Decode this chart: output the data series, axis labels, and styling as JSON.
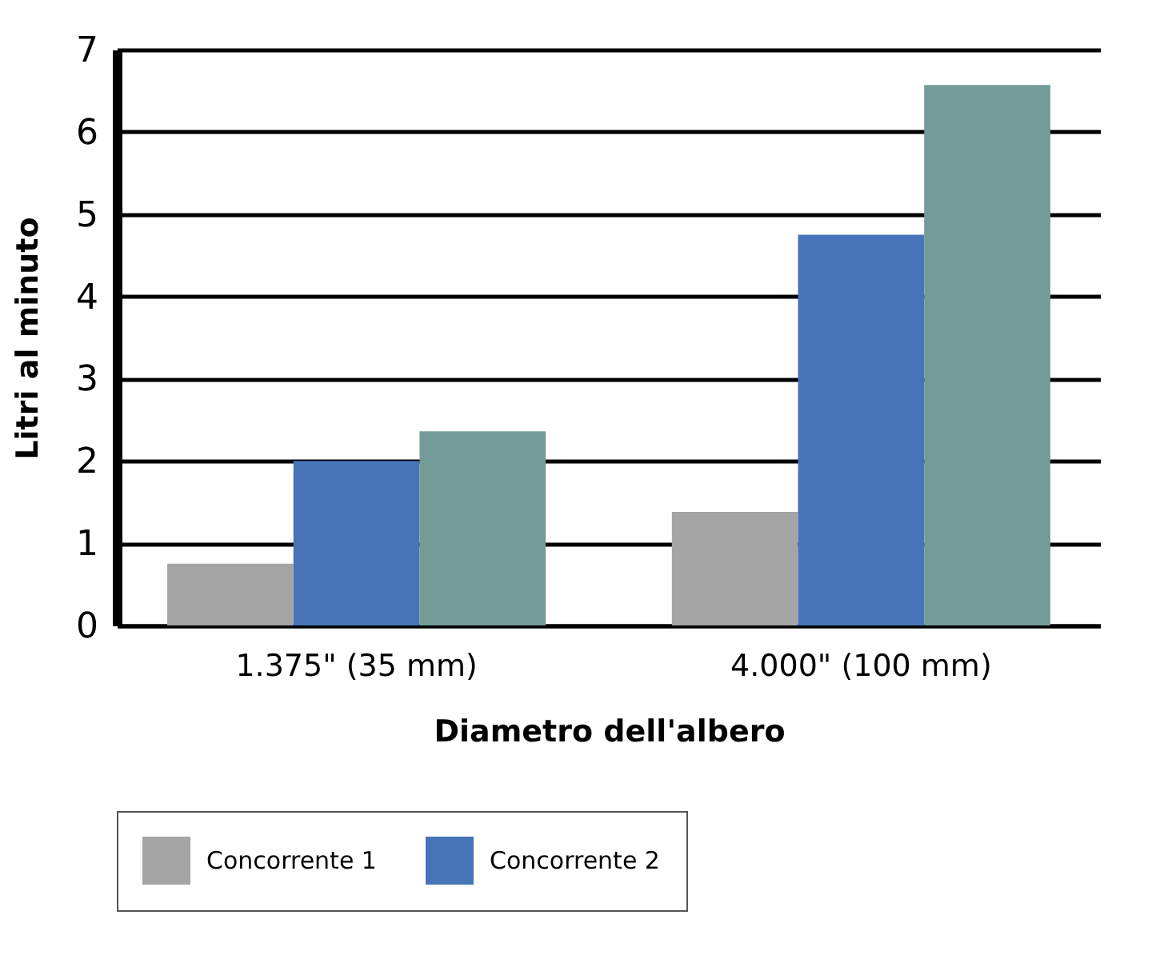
{
  "chart_data": {
    "type": "bar",
    "xlabel": "Diametro dell'albero",
    "ylabel": "Litri al minuto",
    "categories": [
      "1.375\" (35 mm)",
      "4.000\" (100 mm)"
    ],
    "series": [
      {
        "name": "Concorrente 1",
        "color": "#a5a5a5",
        "values": [
          0.75,
          1.38
        ]
      },
      {
        "name": "Concorrente 2",
        "color": "#4774b8",
        "values": [
          2.0,
          4.75
        ]
      },
      {
        "color": "#739b97",
        "values": [
          2.36,
          6.57
        ]
      }
    ],
    "ylim": [
      0,
      7
    ],
    "yticks": [
      0,
      1,
      2,
      3,
      4,
      5,
      6,
      7
    ],
    "grid": "y",
    "legend": "bottom"
  }
}
